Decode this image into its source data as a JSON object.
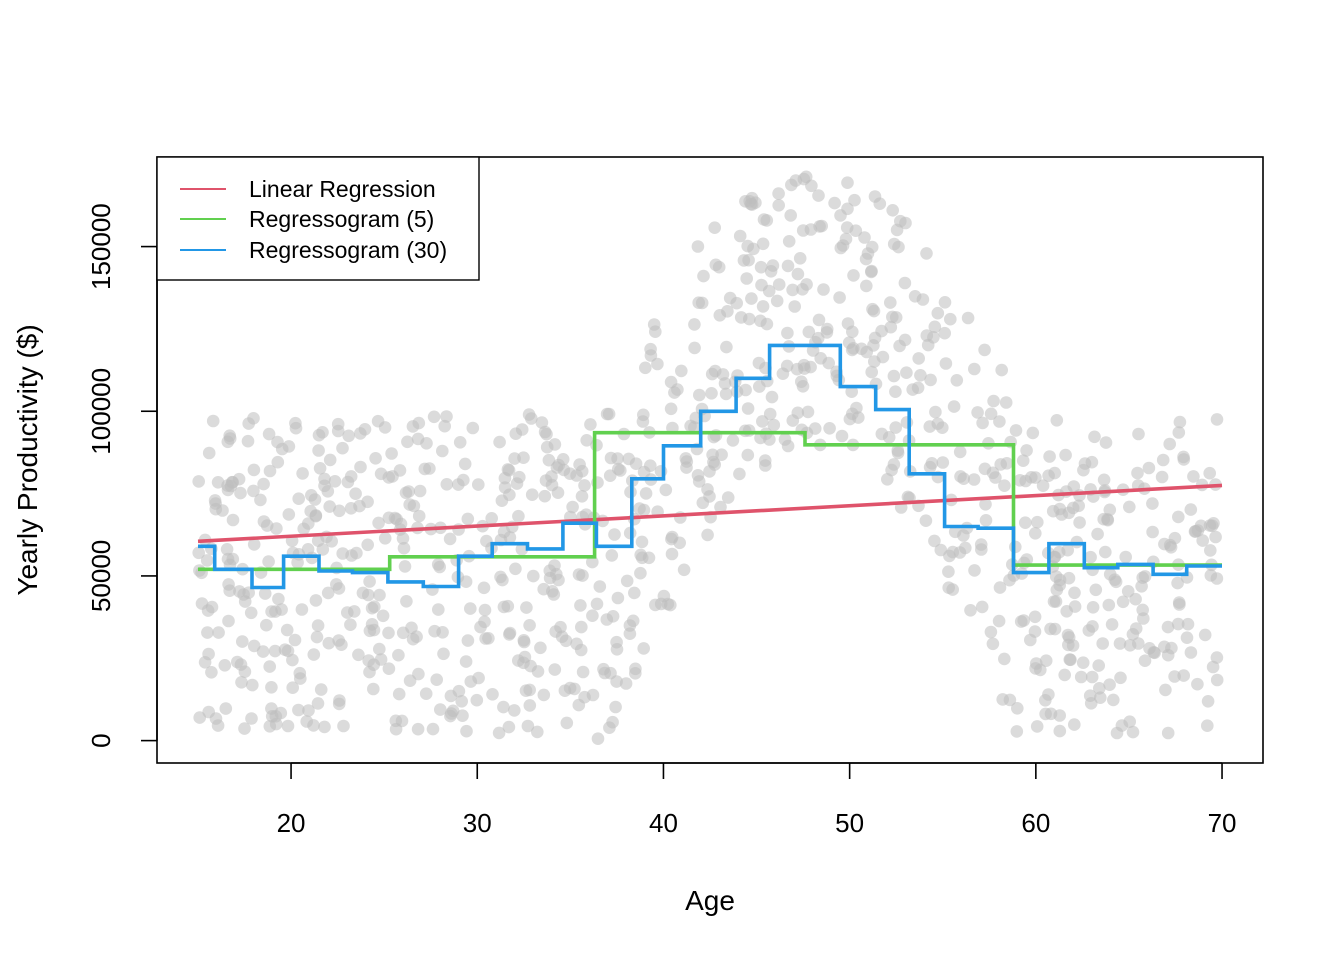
{
  "chart_data": {
    "type": "scatter",
    "title": "",
    "xlabel": "Age",
    "ylabel": "Yearly Productivity ($)",
    "xlim": [
      12.8,
      72.2
    ],
    "ylim": [
      -6800,
      177200
    ],
    "x_ticks": [
      20,
      30,
      40,
      50,
      60,
      70
    ],
    "x_tick_labels": [
      "20",
      "30",
      "40",
      "50",
      "60",
      "70"
    ],
    "y_ticks": [
      0,
      50000,
      100000,
      150000
    ],
    "y_tick_labels": [
      "0",
      "50000",
      "100000",
      "150000"
    ],
    "grid": false,
    "legend_position": "top-left",
    "scatter_color": "#bebebe",
    "scatter_description": "about 1000 semi-transparent grey points; roughly uniform 0-100000 at ages 15-36, rising hump peaking near 170000 around age 48, roughly uniform 0-100000 at ages 59-70",
    "scatter_regions": [
      {
        "x_range": [
          15,
          36.3
        ],
        "y_min": 0,
        "y_max": 100000
      },
      {
        "x_range": [
          36.3,
          58.8
        ],
        "y_min": 0,
        "y_max": 172000,
        "peak_x": 48,
        "band_floor": 0.52
      },
      {
        "x_range": [
          58.8,
          70
        ],
        "y_min": 0,
        "y_max": 100000
      }
    ],
    "scatter_count": 1000,
    "series": [
      {
        "name": "Linear Regression",
        "color": "#df536b",
        "kind": "line",
        "x": [
          15,
          70
        ],
        "y": [
          60500,
          77500
        ]
      },
      {
        "name": "Regressogram (5)",
        "color": "#61d04f",
        "kind": "step",
        "breaks": [
          15,
          25.3,
          36.3,
          47.6,
          58.8,
          70
        ],
        "values": [
          52000,
          55800,
          93500,
          89800,
          53300
        ]
      },
      {
        "name": "Regressogram (30)",
        "color": "#2297e6",
        "kind": "step",
        "breaks": [
          15,
          15.9,
          17.9,
          19.6,
          21.5,
          23.3,
          25.2,
          27.1,
          29.0,
          30.8,
          32.7,
          34.6,
          36.4,
          38.3,
          40.0,
          42.0,
          43.9,
          45.7,
          47.7,
          49.5,
          51.4,
          53.2,
          55.1,
          56.9,
          58.8,
          60.7,
          62.6,
          64.4,
          66.3,
          68.1,
          70
        ],
        "values": [
          59000,
          52000,
          46500,
          56000,
          51500,
          51000,
          48200,
          46800,
          56000,
          59800,
          58200,
          66000,
          59000,
          79500,
          89500,
          100000,
          110000,
          120000,
          120000,
          107500,
          100500,
          81000,
          65000,
          64500,
          51000,
          59800,
          52500,
          53500,
          50500,
          53000
        ]
      }
    ]
  }
}
